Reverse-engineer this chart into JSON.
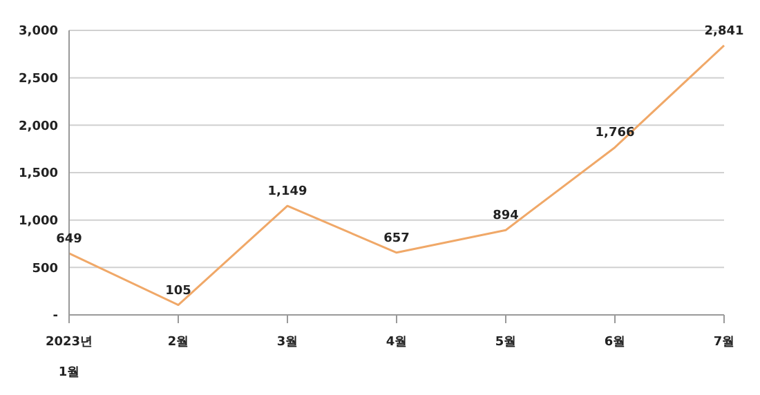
{
  "chart_data": {
    "type": "line",
    "categories": [
      "2023년\n1월",
      "2월",
      "3월",
      "4월",
      "5월",
      "6월",
      "7월"
    ],
    "values": [
      649,
      105,
      1149,
      657,
      894,
      1766,
      2841
    ],
    "color": "#f0a868",
    "ylim": [
      0,
      3000
    ],
    "yticks": [
      {
        "value": 0,
        "label": "-"
      },
      {
        "value": 500,
        "label": "500"
      },
      {
        "value": 1000,
        "label": "1,000"
      },
      {
        "value": 1500,
        "label": "1,500"
      },
      {
        "value": 2000,
        "label": "2,000"
      },
      {
        "value": 2500,
        "label": "2,500"
      },
      {
        "value": 3000,
        "label": "3,000"
      }
    ],
    "value_labels": [
      "649",
      "105",
      "1,149",
      "657",
      "894",
      "1,766",
      "2,841"
    ],
    "grid": "y",
    "marker": "none",
    "line_style": "solid",
    "legend": false
  }
}
